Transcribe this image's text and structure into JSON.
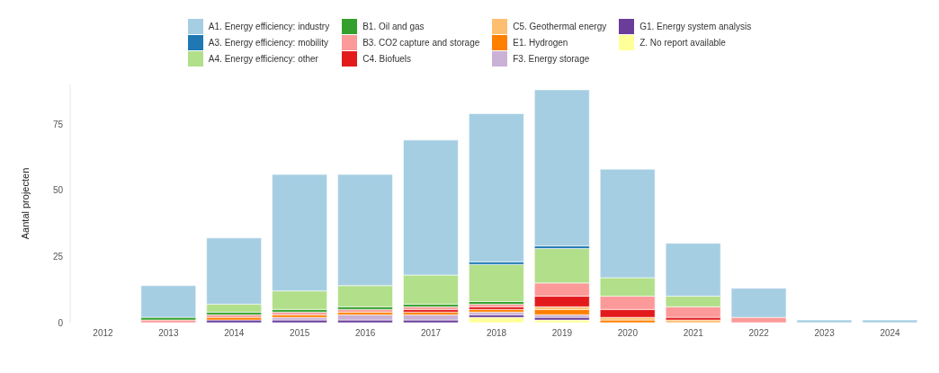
{
  "chart_data": {
    "type": "bar",
    "stacked": true,
    "ylabel": "Aantal projecten",
    "categories": [
      "2012",
      "2013",
      "2014",
      "2015",
      "2016",
      "2017",
      "2018",
      "2019",
      "2020",
      "2021",
      "2022",
      "2023",
      "2024"
    ],
    "series": [
      {
        "name": "Z. No report available",
        "color": "#ffff99",
        "values": [
          0,
          0,
          0,
          0,
          0,
          0,
          2,
          1,
          0,
          0,
          0,
          0,
          0
        ]
      },
      {
        "name": "G1. Energy system analysis",
        "color": "#6a3d9a",
        "values": [
          0,
          0,
          1,
          1,
          1,
          1,
          1,
          1,
          0,
          0,
          0,
          0,
          0
        ]
      },
      {
        "name": "F3. Energy storage",
        "color": "#cab2d6",
        "values": [
          0,
          0,
          0,
          1,
          2,
          2,
          1,
          1,
          0,
          0,
          0,
          0,
          0
        ]
      },
      {
        "name": "E1. Hydrogen",
        "color": "#ff7f00",
        "values": [
          0,
          0,
          1,
          1,
          1,
          1,
          1,
          2,
          1,
          0,
          0,
          0,
          0
        ]
      },
      {
        "name": "C5. Geothermal energy",
        "color": "#fdbf6f",
        "values": [
          0,
          0,
          0,
          0,
          0,
          0,
          0,
          1,
          1,
          1,
          0,
          0,
          0
        ]
      },
      {
        "name": "C4. Biofuels",
        "color": "#e31a1c",
        "values": [
          0,
          0,
          0,
          0,
          0,
          1,
          1,
          4,
          3,
          1,
          0,
          0,
          0
        ]
      },
      {
        "name": "B3. CO2 capture and storage",
        "color": "#fb9a99",
        "values": [
          0,
          1,
          1,
          1,
          1,
          1,
          1,
          5,
          5,
          4,
          2,
          0,
          0
        ]
      },
      {
        "name": "B1. Oil and gas",
        "color": "#33a02c",
        "values": [
          0,
          1,
          1,
          1,
          1,
          1,
          1,
          0,
          0,
          0,
          0,
          0,
          0
        ]
      },
      {
        "name": "A4. Energy efficiency: other",
        "color": "#b2df8a",
        "values": [
          0,
          0,
          3,
          7,
          8,
          11,
          14,
          13,
          7,
          4,
          0,
          0,
          0
        ]
      },
      {
        "name": "A3. Energy efficiency: mobility",
        "color": "#1f78b4",
        "values": [
          0,
          0,
          0,
          0,
          0,
          0,
          1,
          1,
          0,
          0,
          0,
          0,
          0
        ]
      },
      {
        "name": "A1. Energy efficiency: industry",
        "color": "#a6cee3",
        "values": [
          0,
          12,
          25,
          44,
          42,
          51,
          56,
          59,
          41,
          20,
          11,
          1,
          1
        ]
      }
    ],
    "ylim": [
      0,
      90
    ],
    "yticks": [
      0,
      25,
      50,
      75
    ],
    "grid": false,
    "legend": "top"
  }
}
